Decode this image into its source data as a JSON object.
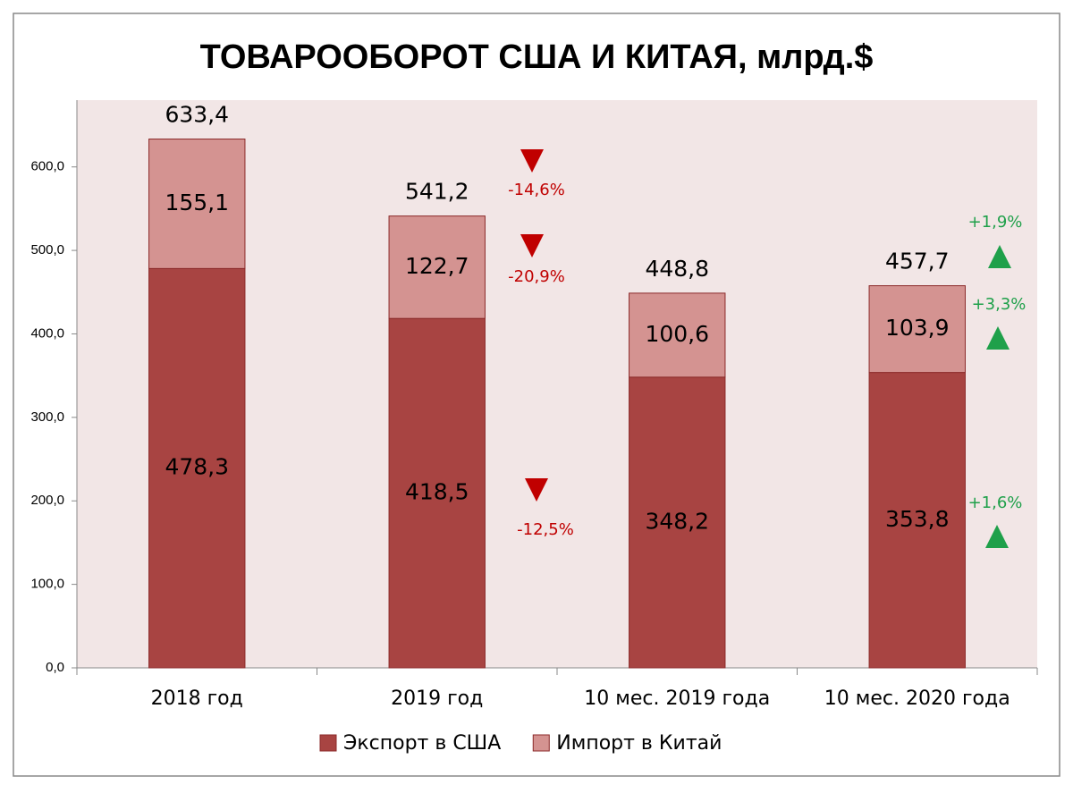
{
  "chart_data": {
    "type": "stacked_bar",
    "title": "ТОВАРООБОРОТ США И КИТАЯ, млрд.$",
    "categories": [
      "2018 год",
      "2019 год",
      "10 мес. 2019 года",
      "10 мес. 2020 года"
    ],
    "series": [
      {
        "name": "Экспорт в США",
        "color": "#a84442",
        "values": [
          478.3,
          418.5,
          348.2,
          353.8
        ],
        "value_labels": [
          "478,3",
          "418,5",
          "348,2",
          "353,8"
        ]
      },
      {
        "name": "Импорт в Китай",
        "color": "#d49391",
        "values": [
          155.1,
          122.7,
          100.6,
          103.9
        ],
        "value_labels": [
          "155,1",
          "122,7",
          "100,6",
          "103,9"
        ]
      }
    ],
    "totals": {
      "values": [
        633.4,
        541.2,
        448.8,
        457.7
      ],
      "value_labels": [
        "633,4",
        "541,2",
        "448,8",
        "457,7"
      ]
    },
    "annotations": [
      {
        "value": -14.6,
        "label": "-14,6%",
        "color": "#c00000"
      },
      {
        "value": -20.9,
        "label": "-20,9%",
        "color": "#c00000"
      },
      {
        "value": -12.5,
        "label": "-12,5%",
        "color": "#c00000"
      },
      {
        "value": 1.9,
        "label": "+1,9%",
        "color": "#1fa04a"
      },
      {
        "value": 3.3,
        "label": "+3,3%",
        "color": "#1fa04a"
      },
      {
        "value": 1.6,
        "label": "+1,6%",
        "color": "#1fa04a"
      }
    ],
    "ylim": [
      0,
      680
    ],
    "yticks": [
      {
        "value": 0,
        "label": "0,0"
      },
      {
        "value": 100,
        "label": "100,0"
      },
      {
        "value": 200,
        "label": "200,0"
      },
      {
        "value": 300,
        "label": "300,0"
      },
      {
        "value": 400,
        "label": "400,0"
      },
      {
        "value": 500,
        "label": "500,0"
      },
      {
        "value": 600,
        "label": "600,0"
      }
    ],
    "plot_background": "#f2e6e6",
    "legend": "bottom"
  }
}
